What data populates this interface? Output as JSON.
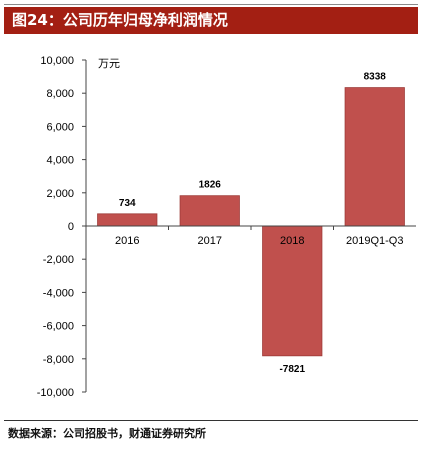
{
  "header": {
    "title": "图24：公司历年归母净利润情况"
  },
  "source": "数据来源：公司招股书，财通证券研究所",
  "chart_data": {
    "type": "bar",
    "categories": [
      "2016",
      "2017",
      "2018",
      "2019Q1-Q3"
    ],
    "values": [
      734,
      1826,
      -7821,
      8338
    ],
    "value_labels": [
      "734",
      "1826",
      "-7821",
      "8338"
    ],
    "unit_label": "万元",
    "ylim": [
      -10000,
      10000
    ],
    "y_ticks": [
      10000,
      8000,
      6000,
      4000,
      2000,
      0,
      -2000,
      -4000,
      -6000,
      -8000,
      -10000
    ],
    "y_tick_labels": [
      "10,000",
      "8,000",
      "6,000",
      "4,000",
      "2,000",
      "0",
      "-2,000",
      "-4,000",
      "-6,000",
      "-8,000",
      "-10,000"
    ],
    "grid": false,
    "legend": "none",
    "bar_color": "#c0504d",
    "bar_edge_color": "#9e3a37"
  }
}
